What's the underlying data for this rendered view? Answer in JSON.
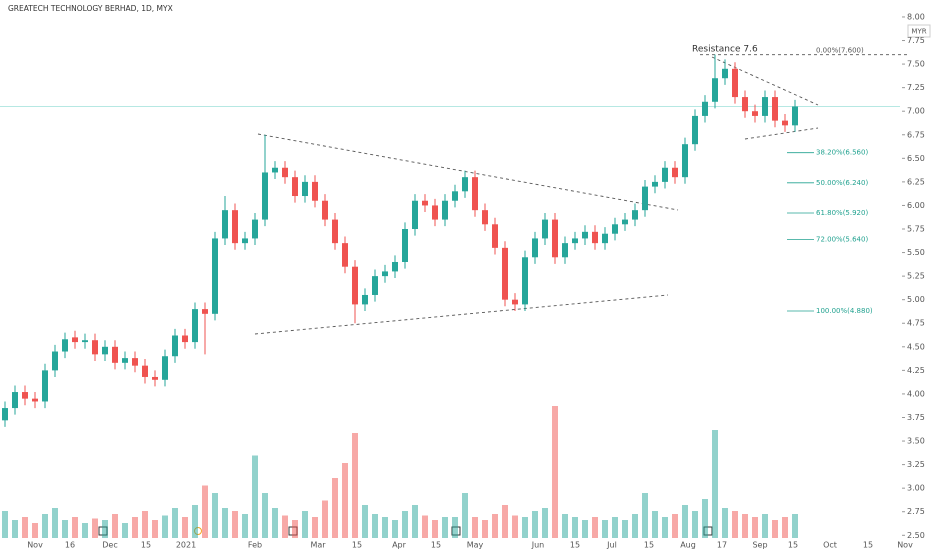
{
  "chart_data": {
    "type": "candlestick",
    "title": "GREATECH TECHNOLOGY BERHAD, 1D, MYX",
    "currency": "MYR",
    "annotation": "Resistance 7.6",
    "up_color": "#26a69a",
    "down_color": "#ef5350",
    "grid": false,
    "open": [
      3.72,
      3.85,
      4.02,
      3.95,
      3.92,
      4.25,
      4.45,
      4.6,
      4.55,
      4.57,
      4.42,
      4.5,
      4.33,
      4.38,
      4.3,
      4.18,
      4.15,
      4.4,
      4.62,
      4.55,
      4.9,
      4.85,
      5.65,
      5.95,
      5.6,
      5.65,
      5.85,
      6.35,
      6.4,
      6.3,
      6.1,
      6.25,
      6.05,
      5.85,
      5.6,
      5.35,
      4.95,
      5.05,
      5.25,
      5.3,
      5.4,
      5.75,
      6.05,
      6.0,
      5.85,
      6.05,
      6.15,
      6.3,
      5.95,
      5.8,
      5.55,
      5.0,
      4.95,
      5.45,
      5.65,
      5.85,
      5.45,
      5.6,
      5.65,
      5.72,
      5.6,
      5.7,
      5.8,
      5.85,
      5.95,
      6.2,
      6.25,
      6.4,
      6.3,
      6.65,
      6.95,
      7.1,
      7.35,
      7.45,
      7.15,
      7.0,
      6.95,
      7.15,
      6.9,
      6.85
    ],
    "high": [
      3.92,
      4.09,
      4.09,
      4.02,
      4.32,
      4.52,
      4.65,
      4.67,
      4.64,
      4.64,
      4.57,
      4.57,
      4.45,
      4.45,
      4.37,
      4.25,
      4.47,
      4.69,
      4.69,
      4.97,
      4.97,
      5.72,
      6.1,
      6.02,
      5.72,
      5.92,
      6.75,
      6.47,
      6.47,
      6.37,
      6.32,
      6.32,
      6.12,
      5.92,
      5.67,
      5.42,
      5.12,
      5.32,
      5.37,
      5.47,
      5.82,
      6.12,
      6.12,
      6.07,
      6.12,
      6.22,
      6.37,
      6.37,
      6.02,
      5.87,
      5.62,
      5.07,
      5.52,
      5.72,
      5.92,
      5.92,
      5.67,
      5.72,
      5.79,
      5.79,
      5.77,
      5.87,
      5.92,
      6.02,
      6.27,
      6.32,
      6.47,
      6.47,
      6.72,
      7.02,
      7.17,
      7.6,
      7.55,
      7.52,
      7.22,
      7.07,
      7.22,
      7.22,
      6.97,
      7.12
    ],
    "low": [
      3.65,
      3.78,
      3.88,
      3.85,
      3.85,
      4.18,
      4.38,
      4.48,
      4.48,
      4.35,
      4.35,
      4.26,
      4.26,
      4.23,
      4.11,
      4.08,
      4.08,
      4.33,
      4.48,
      4.48,
      4.42,
      4.78,
      5.58,
      5.53,
      5.53,
      5.58,
      5.78,
      6.28,
      6.23,
      6.03,
      6.03,
      5.98,
      5.78,
      5.53,
      5.28,
      4.75,
      4.88,
      4.98,
      5.18,
      5.23,
      5.33,
      5.68,
      5.93,
      5.78,
      5.78,
      5.98,
      6.08,
      5.88,
      5.73,
      5.48,
      4.93,
      4.88,
      4.88,
      5.38,
      5.58,
      5.38,
      5.38,
      5.53,
      5.58,
      5.53,
      5.53,
      5.63,
      5.73,
      5.78,
      5.88,
      6.13,
      6.18,
      6.23,
      6.23,
      6.58,
      6.88,
      7.03,
      7.28,
      7.08,
      6.93,
      6.88,
      6.88,
      6.83,
      6.78,
      6.78
    ],
    "close": [
      3.85,
      4.02,
      3.95,
      3.92,
      4.25,
      4.45,
      4.58,
      4.55,
      4.57,
      4.42,
      4.5,
      4.33,
      4.38,
      4.3,
      4.18,
      4.15,
      4.4,
      4.62,
      4.55,
      4.9,
      4.85,
      5.65,
      5.95,
      5.6,
      5.65,
      5.85,
      6.35,
      6.4,
      6.3,
      6.1,
      6.25,
      6.05,
      5.85,
      5.6,
      5.35,
      4.95,
      5.05,
      5.25,
      5.3,
      5.4,
      5.75,
      6.05,
      6.0,
      5.85,
      6.05,
      6.15,
      6.3,
      5.95,
      5.8,
      5.55,
      5.0,
      4.95,
      5.45,
      5.65,
      5.85,
      5.45,
      5.6,
      5.65,
      5.72,
      5.6,
      5.7,
      5.8,
      5.85,
      5.95,
      6.2,
      6.25,
      6.4,
      6.3,
      6.65,
      6.95,
      7.1,
      7.35,
      7.45,
      7.15,
      7.0,
      6.95,
      7.15,
      6.9,
      6.85,
      7.05
    ],
    "volume": [
      18,
      12,
      14,
      10,
      16,
      20,
      12,
      14,
      10,
      13,
      12,
      16,
      10,
      14,
      18,
      12,
      15,
      20,
      14,
      22,
      35,
      30,
      20,
      18,
      16,
      55,
      30,
      20,
      15,
      12,
      18,
      14,
      25,
      40,
      50,
      70,
      22,
      16,
      14,
      12,
      18,
      22,
      15,
      12,
      14,
      14,
      30,
      14,
      12,
      16,
      22,
      15,
      14,
      18,
      20,
      88,
      16,
      14,
      12,
      14,
      12,
      14,
      12,
      16,
      30,
      18,
      14,
      16,
      22,
      18,
      26,
      72,
      20,
      18,
      16,
      14,
      16,
      12,
      14,
      16
    ],
    "volume_lim": [
      0,
      100
    ],
    "xlim": [
      0,
      90
    ],
    "xticks": [
      {
        "value": 3.5,
        "label": "Nov"
      },
      {
        "value": 7,
        "label": "16"
      },
      {
        "value": 11,
        "label": "Dec"
      },
      {
        "value": 14.6,
        "label": "15"
      },
      {
        "value": 18.6,
        "label": "2021"
      },
      {
        "value": 25.5,
        "label": "Feb"
      },
      {
        "value": 31.8,
        "label": "Mar"
      },
      {
        "value": 35.7,
        "label": "15"
      },
      {
        "value": 39.9,
        "label": "Apr"
      },
      {
        "value": 43.6,
        "label": "15"
      },
      {
        "value": 47.5,
        "label": "May"
      },
      {
        "value": 53.8,
        "label": "Jun"
      },
      {
        "value": 57.5,
        "label": "15"
      },
      {
        "value": 61.2,
        "label": "Jul"
      },
      {
        "value": 64.9,
        "label": "15"
      },
      {
        "value": 68.8,
        "label": "Aug"
      },
      {
        "value": 72.2,
        "label": "17"
      },
      {
        "value": 76,
        "label": "Sep"
      },
      {
        "value": 79.3,
        "label": "15"
      },
      {
        "value": 83,
        "label": "Oct"
      },
      {
        "value": 86.8,
        "label": "15"
      },
      {
        "value": 90.5,
        "label": "Nov"
      }
    ],
    "ylim": [
      2.45,
      8.18
    ],
    "yticks": [
      {
        "value": 2.5,
        "label": "2.50"
      },
      {
        "value": 2.75,
        "label": "2.75"
      },
      {
        "value": 3,
        "label": "3.00"
      },
      {
        "value": 3.25,
        "label": "3.25"
      },
      {
        "value": 3.5,
        "label": "3.50"
      },
      {
        "value": 3.75,
        "label": "3.75"
      },
      {
        "value": 4,
        "label": "4.00"
      },
      {
        "value": 4.25,
        "label": "4.25"
      },
      {
        "value": 4.5,
        "label": "4.50"
      },
      {
        "value": 4.75,
        "label": "4.75"
      },
      {
        "value": 5,
        "label": "5.00"
      },
      {
        "value": 5.25,
        "label": "5.25"
      },
      {
        "value": 5.5,
        "label": "5.50"
      },
      {
        "value": 5.75,
        "label": "5.75"
      },
      {
        "value": 6,
        "label": "6.00"
      },
      {
        "value": 6.25,
        "label": "6.25"
      },
      {
        "value": 6.5,
        "label": "6.50"
      },
      {
        "value": 6.75,
        "label": "6.75"
      },
      {
        "value": 7,
        "label": "7.00"
      },
      {
        "value": 7.25,
        "label": "7.25"
      },
      {
        "value": 7.5,
        "label": "7.50"
      },
      {
        "value": 7.75,
        "label": "7.75"
      },
      {
        "value": 8,
        "label": "8.00"
      }
    ],
    "fib_levels": [
      {
        "value": 7.6,
        "label": "0.00%(7.600)"
      },
      {
        "value": 6.56,
        "label": "38.20%(6.560)"
      },
      {
        "value": 6.24,
        "label": "50.00%(6.240)"
      },
      {
        "value": 5.92,
        "label": "61.80%(5.920)"
      },
      {
        "value": 5.64,
        "label": "72.00%(5.640)"
      },
      {
        "value": 4.88,
        "label": "100.00%(4.880)"
      }
    ]
  }
}
